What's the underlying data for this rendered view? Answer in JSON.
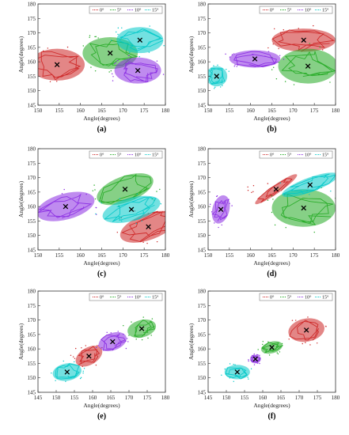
{
  "chart_data": [
    {
      "id": "a",
      "type": "scatter",
      "caption": "(a)",
      "xlabel": "Angle(degrees)",
      "ylabel": "Angle(degrees)",
      "xlim": [
        150,
        180
      ],
      "ylim": [
        145,
        180
      ],
      "xticks": [
        150,
        155,
        160,
        165,
        170,
        175,
        180
      ],
      "yticks": [
        145,
        150,
        155,
        160,
        165,
        170,
        175,
        180
      ],
      "legend": {
        "position": "top-right",
        "entries": [
          "0°",
          "5°",
          "10°",
          "15°"
        ]
      },
      "series": [
        {
          "legend": "0°",
          "color": "#cc2222",
          "center": [
            154.5,
            159
          ],
          "semi_axes": [
            6.5,
            5.5
          ],
          "angle": 0
        },
        {
          "legend": "5°",
          "color": "#22aa22",
          "center": [
            167,
            163
          ],
          "semi_axes": [
            6.5,
            5.5
          ],
          "angle": 0
        },
        {
          "legend": "10°",
          "color": "#8a2be2",
          "center": [
            173.5,
            157
          ],
          "semi_axes": [
            5.5,
            4.5
          ],
          "angle": 0
        },
        {
          "legend": "15°",
          "color": "#00c8c8",
          "center": [
            174,
            167.5
          ],
          "semi_axes": [
            5.5,
            4.5
          ],
          "angle": 0
        }
      ]
    },
    {
      "id": "b",
      "type": "scatter",
      "caption": "(b)",
      "xlabel": "Angle(degrees)",
      "ylabel": "Angle(degrees)",
      "xlim": [
        150,
        180
      ],
      "ylim": [
        145,
        180
      ],
      "xticks": [
        150,
        155,
        160,
        165,
        170,
        175,
        180
      ],
      "yticks": [
        145,
        150,
        155,
        160,
        165,
        170,
        175,
        180
      ],
      "legend": {
        "position": "top-right",
        "entries": [
          "0°",
          "5°",
          "10°",
          "15°"
        ]
      },
      "series": [
        {
          "legend": "0°",
          "color": "#cc2222",
          "center": [
            172.5,
            167.5
          ],
          "semi_axes": [
            7.5,
            4
          ],
          "angle": 0
        },
        {
          "legend": "5°",
          "color": "#22aa22",
          "center": [
            173.5,
            158.5
          ],
          "semi_axes": [
            7,
            6
          ],
          "angle": 0
        },
        {
          "legend": "10°",
          "color": "#8a2be2",
          "center": [
            161,
            161
          ],
          "semi_axes": [
            6,
            3
          ],
          "angle": 0
        },
        {
          "legend": "15°",
          "color": "#00c8c8",
          "center": [
            152,
            155
          ],
          "semi_axes": [
            2.5,
            3.5
          ],
          "angle": 0
        }
      ]
    },
    {
      "id": "c",
      "type": "scatter",
      "caption": "(c)",
      "xlabel": "Angle(degrees)",
      "ylabel": "Angle(degrees)",
      "xlim": [
        150,
        180
      ],
      "ylim": [
        145,
        180
      ],
      "xticks": [
        150,
        155,
        160,
        165,
        170,
        175,
        180
      ],
      "yticks": [
        145,
        150,
        155,
        160,
        165,
        170,
        175,
        180
      ],
      "legend": {
        "position": "top-right",
        "entries": [
          "0°",
          "5°",
          "10°",
          "15°"
        ]
      },
      "series": [
        {
          "legend": "0°",
          "color": "#cc2222",
          "center": [
            176,
            153
          ],
          "semi_axes": [
            7,
            4.5
          ],
          "angle": 20
        },
        {
          "legend": "5°",
          "color": "#22aa22",
          "center": [
            170.5,
            166
          ],
          "semi_axes": [
            7,
            4.5
          ],
          "angle": 20
        },
        {
          "legend": "10°",
          "color": "#8a2be2",
          "center": [
            156.5,
            160
          ],
          "semi_axes": [
            7,
            4.5
          ],
          "angle": 15
        },
        {
          "legend": "15°",
          "color": "#00c8c8",
          "center": [
            172,
            159
          ],
          "semi_axes": [
            7,
            4
          ],
          "angle": 15
        }
      ]
    },
    {
      "id": "d",
      "type": "scatter",
      "caption": "(d)",
      "xlabel": "Angle(degrees)",
      "ylabel": "Angle(degrees)",
      "xlim": [
        150,
        180
      ],
      "ylim": [
        145,
        180
      ],
      "xticks": [
        150,
        155,
        160,
        165,
        170,
        175,
        180
      ],
      "yticks": [
        145,
        150,
        155,
        160,
        165,
        170,
        175,
        180
      ],
      "legend": {
        "position": "top-right",
        "entries": [
          "0°",
          "5°",
          "10°",
          "15°"
        ]
      },
      "series": [
        {
          "legend": "0°",
          "color": "#cc2222",
          "center": [
            166,
            166
          ],
          "semi_axes": [
            6,
            1.5
          ],
          "angle": 35
        },
        {
          "legend": "5°",
          "color": "#22aa22",
          "center": [
            172.5,
            159.5
          ],
          "semi_axes": [
            7.5,
            6.5
          ],
          "angle": 0
        },
        {
          "legend": "10°",
          "color": "#8a2be2",
          "center": [
            153,
            159
          ],
          "semi_axes": [
            2,
            5
          ],
          "angle": -15
        },
        {
          "legend": "15°",
          "color": "#00c8c8",
          "center": [
            174,
            167.5
          ],
          "semi_axes": [
            7,
            2.5
          ],
          "angle": 20
        }
      ]
    },
    {
      "id": "e",
      "type": "scatter",
      "caption": "(e)",
      "xlabel": "Angle(degrees)",
      "ylabel": "Angle(degrees)",
      "xlim": [
        145,
        180
      ],
      "ylim": [
        145,
        180
      ],
      "xticks": [
        145,
        150,
        155,
        160,
        165,
        170,
        175,
        180
      ],
      "yticks": [
        145,
        150,
        155,
        160,
        165,
        170,
        175,
        180
      ],
      "legend": {
        "position": "top-right",
        "entries": [
          "0°",
          "5°",
          "10°",
          "15°"
        ]
      },
      "series": [
        {
          "legend": "0°",
          "color": "#cc2222",
          "center": [
            159,
            157.5
          ],
          "semi_axes": [
            4,
            3
          ],
          "angle": 30
        },
        {
          "legend": "5°",
          "color": "#22aa22",
          "center": [
            173.5,
            167
          ],
          "semi_axes": [
            4,
            3
          ],
          "angle": 15
        },
        {
          "legend": "10°",
          "color": "#8a2be2",
          "center": [
            165.5,
            162.5
          ],
          "semi_axes": [
            4,
            3
          ],
          "angle": 20
        },
        {
          "legend": "15°",
          "color": "#00c8c8",
          "center": [
            153,
            152
          ],
          "semi_axes": [
            4,
            3
          ],
          "angle": 10
        }
      ]
    },
    {
      "id": "f",
      "type": "scatter",
      "caption": "(f)",
      "xlabel": "Angle(degrees)",
      "ylabel": "Angle(degrees)",
      "xlim": [
        145,
        180
      ],
      "ylim": [
        145,
        180
      ],
      "xticks": [
        145,
        150,
        155,
        160,
        165,
        170,
        175,
        180
      ],
      "yticks": [
        145,
        150,
        155,
        160,
        165,
        170,
        175,
        180
      ],
      "legend": {
        "position": "top-right",
        "entries": [
          "0°",
          "5°",
          "10°",
          "15°"
        ]
      },
      "series": [
        {
          "legend": "0°",
          "color": "#cc2222",
          "center": [
            172,
            166.5
          ],
          "semi_axes": [
            5,
            4
          ],
          "angle": 10
        },
        {
          "legend": "5°",
          "color": "#22aa22",
          "center": [
            162.5,
            160.5
          ],
          "semi_axes": [
            3,
            2
          ],
          "angle": 15
        },
        {
          "legend": "10°",
          "color": "#8a2be2",
          "center": [
            158,
            156.5
          ],
          "semi_axes": [
            1.5,
            1.5
          ],
          "angle": 0
        },
        {
          "legend": "15°",
          "color": "#00c8c8",
          "center": [
            153,
            152
          ],
          "semi_axes": [
            3.5,
            2.5
          ],
          "angle": 0
        }
      ]
    }
  ]
}
